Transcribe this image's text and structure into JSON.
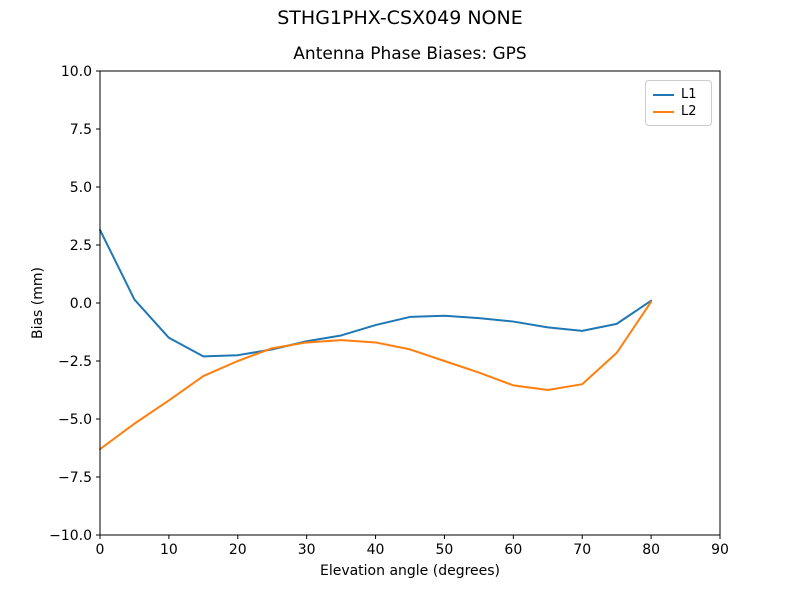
{
  "figure": {
    "suptitle": "STHG1PHX-CSX049 NONE",
    "title": "Antenna Phase Biases: GPS",
    "background": "#ffffff"
  },
  "chart_data": {
    "type": "line",
    "suptitle": "STHG1PHX-CSX049 NONE",
    "title": "Antenna Phase Biases: GPS",
    "xlabel": "Elevation angle (degrees)",
    "ylabel": "Bias (mm)",
    "xlim": [
      0,
      90
    ],
    "ylim": [
      -10,
      10
    ],
    "grid": false,
    "legend_position": "upper right",
    "x_ticks": [
      0,
      10,
      20,
      30,
      40,
      50,
      60,
      70,
      80,
      90
    ],
    "x_tick_labels": [
      "0",
      "10",
      "20",
      "30",
      "40",
      "50",
      "60",
      "70",
      "80",
      "90"
    ],
    "y_ticks": [
      -10,
      -7.5,
      -5,
      -2.5,
      0,
      2.5,
      5,
      7.5,
      10
    ],
    "y_tick_labels": [
      "−10.0",
      "−7.5",
      "−5.0",
      "−2.5",
      "0.0",
      "2.5",
      "5.0",
      "7.5",
      "10.0"
    ],
    "series": [
      {
        "name": "L1",
        "color": "#1f77b4",
        "x": [
          0,
          5,
          10,
          15,
          20,
          25,
          30,
          35,
          40,
          45,
          50,
          55,
          60,
          65,
          70,
          75,
          80
        ],
        "y": [
          3.15,
          0.15,
          -1.5,
          -2.3,
          -2.25,
          -2.0,
          -1.65,
          -1.4,
          -0.95,
          -0.6,
          -0.55,
          -0.65,
          -0.8,
          -1.05,
          -1.2,
          -0.9,
          0.1
        ]
      },
      {
        "name": "L2",
        "color": "#ff7f0e",
        "x": [
          0,
          5,
          10,
          15,
          20,
          25,
          30,
          35,
          40,
          45,
          50,
          55,
          60,
          65,
          70,
          75,
          80
        ],
        "y": [
          -6.3,
          -5.2,
          -4.2,
          -3.15,
          -2.5,
          -1.95,
          -1.7,
          -1.6,
          -1.7,
          -2.0,
          -2.5,
          -3.0,
          -3.55,
          -3.75,
          -3.5,
          -2.15,
          0.05
        ]
      }
    ],
    "axis_colors": {
      "spine": "#000000",
      "tick": "#000000",
      "legend_border": "#cccccc"
    }
  }
}
